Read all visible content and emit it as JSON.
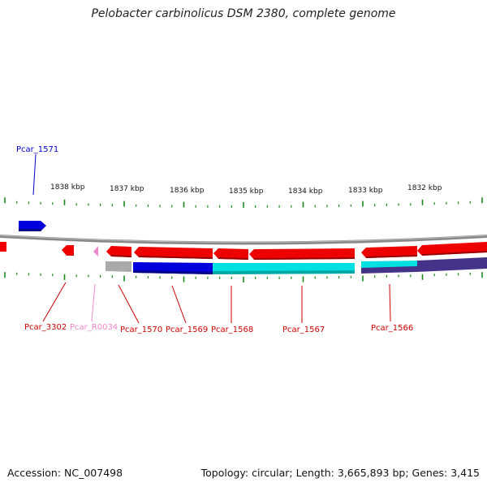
{
  "title": "Pelobacter carbinolicus DSM 2380, complete genome",
  "footer": {
    "accession": "Accession: NC_007498",
    "summary": "Topology: circular; Length: 3,665,893 bp; Genes: 3,415"
  },
  "colors": {
    "red_gene": "#ee0000",
    "blue_gene": "#0000dd",
    "cyan_gene": "#00e0e0",
    "pink_gene": "#ee88cc",
    "gray_gene": "#aaaaaa",
    "purple_gene": "#443388",
    "tick": "#1b8a1b",
    "backbone": "#888888"
  },
  "scale": {
    "unit_label": "kbp",
    "ticks": [
      "1838 kbp",
      "1837 kbp",
      "1836 kbp",
      "1835 kbp",
      "1834 kbp",
      "1833 kbp",
      "1832 kbp"
    ]
  },
  "gene_labels": [
    {
      "name": "Pcar_1571",
      "strand": "forward",
      "kind": "protein"
    },
    {
      "name": "Pcar_3302",
      "strand": "reverse",
      "kind": "protein"
    },
    {
      "name": "Pcar_R0034",
      "strand": "reverse",
      "kind": "rna"
    },
    {
      "name": "Pcar_1570",
      "strand": "reverse",
      "kind": "protein"
    },
    {
      "name": "Pcar_1569",
      "strand": "reverse",
      "kind": "protein"
    },
    {
      "name": "Pcar_1568",
      "strand": "reverse",
      "kind": "protein"
    },
    {
      "name": "Pcar_1567",
      "strand": "reverse",
      "kind": "protein"
    },
    {
      "name": "Pcar_1566",
      "strand": "reverse",
      "kind": "protein"
    }
  ]
}
